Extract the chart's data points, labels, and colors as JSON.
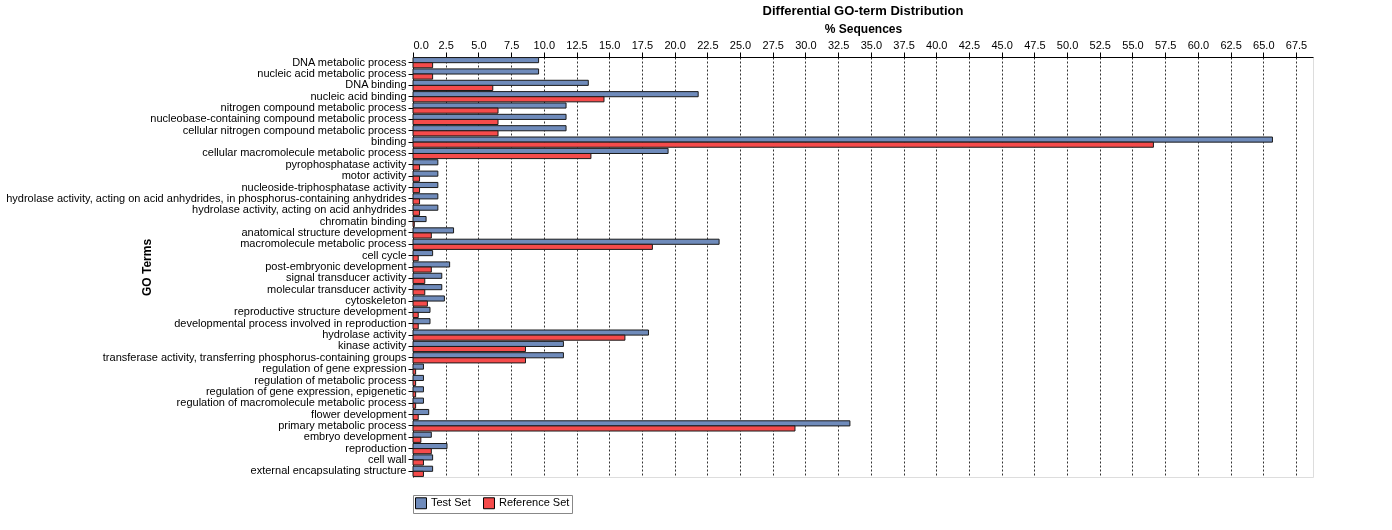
{
  "chart_data": {
    "type": "bar",
    "orientation": "horizontal",
    "title": "Differential GO-term Distribution",
    "xlabel": "% Sequences",
    "ylabel": "GO Terms",
    "categories": [
      "DNA metabolic process",
      "nucleic acid metabolic process",
      "DNA binding",
      "nucleic acid binding",
      "nitrogen compound metabolic process",
      "nucleobase-containing compound metabolic process",
      "cellular nitrogen compound metabolic process",
      "binding",
      "cellular macromolecule metabolic process",
      "pyrophosphatase activity",
      "motor activity",
      "nucleoside-triphosphatase activity",
      "hydrolase activity, acting on acid anhydrides, in phosphorus-containing anhydrides",
      "hydrolase activity, acting on acid anhydrides",
      "chromatin binding",
      "anatomical structure development",
      "macromolecule metabolic process",
      "cell cycle",
      "post-embryonic development",
      "signal transducer activity",
      "molecular transducer activity",
      "cytoskeleton",
      "reproductive structure development",
      "developmental process involved in reproduction",
      "hydrolase activity",
      "kinase activity",
      "transferase activity, transferring phosphorus-containing groups",
      "regulation of gene expression",
      "regulation of metabolic process",
      "regulation of gene expression, epigenetic",
      "regulation of macromolecule metabolic process",
      "flower development",
      "primary metabolic process",
      "embryo development",
      "reproduction",
      "cell wall",
      "external encapsulating structure"
    ],
    "series": [
      {
        "name": "Test Set",
        "color": "#6f8bbb",
        "values": [
          9.6,
          9.6,
          13.4,
          21.8,
          11.7,
          11.7,
          11.7,
          65.7,
          19.5,
          1.9,
          1.9,
          1.9,
          1.9,
          1.9,
          1.0,
          3.1,
          23.4,
          1.5,
          2.8,
          2.2,
          2.2,
          2.4,
          1.3,
          1.3,
          18.0,
          11.5,
          11.5,
          0.8,
          0.8,
          0.8,
          0.8,
          1.2,
          33.4,
          1.4,
          2.6,
          1.5,
          1.5
        ]
      },
      {
        "name": "Reference Set",
        "color": "#f54b4b",
        "values": [
          1.5,
          1.5,
          6.1,
          14.6,
          6.5,
          6.5,
          6.5,
          56.6,
          13.6,
          0.5,
          0.5,
          0.5,
          0.5,
          0.5,
          0.1,
          1.4,
          18.3,
          0.4,
          1.4,
          0.9,
          0.9,
          1.1,
          0.4,
          0.4,
          16.2,
          8.6,
          8.6,
          0.2,
          0.2,
          0.2,
          0.2,
          0.4,
          29.2,
          0.6,
          1.4,
          0.8,
          0.8
        ]
      }
    ],
    "xlim": [
      0,
      68.8
    ],
    "xticks": [
      {
        "value": 0,
        "label": "0.0"
      },
      2.5,
      {
        "value": 5,
        "label": "5.0"
      },
      7.5,
      {
        "value": 10,
        "label": "10.0"
      },
      12.5,
      {
        "value": 15,
        "label": "15.0"
      },
      17.5,
      {
        "value": 20,
        "label": "20.0"
      },
      22.5,
      {
        "value": 25,
        "label": "25.0"
      },
      27.5,
      {
        "value": 30,
        "label": "30.0"
      },
      32.5,
      {
        "value": 35,
        "label": "35.0"
      },
      37.5,
      {
        "value": 40,
        "label": "40.0"
      },
      42.5,
      {
        "value": 45,
        "label": "45.0"
      },
      47.5,
      {
        "value": 50,
        "label": "50.0"
      },
      52.5,
      {
        "value": 55,
        "label": "55.0"
      },
      57.5,
      {
        "value": 60,
        "label": "60.0"
      },
      62.5,
      {
        "value": 65,
        "label": "65.0"
      },
      67.5
    ],
    "grid": "x",
    "legend": "bottom"
  }
}
